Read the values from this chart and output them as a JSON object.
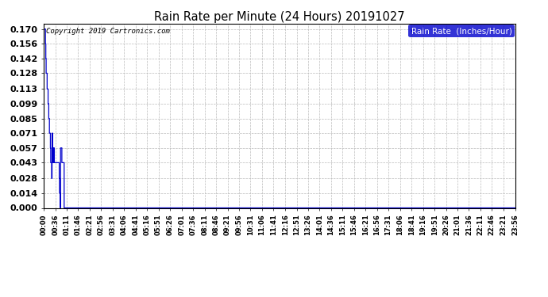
{
  "title": "Rain Rate per Minute (24 Hours) 20191027",
  "copyright_text": "Copyright 2019 Cartronics.com",
  "legend_label": "Rain Rate  (Inches/Hour)",
  "line_color": "#0000cc",
  "legend_bg": "#0000cc",
  "legend_text_color": "#ffffff",
  "background_color": "#ffffff",
  "grid_color": "#bbbbbb",
  "yticks": [
    0.0,
    0.014,
    0.028,
    0.043,
    0.057,
    0.071,
    0.085,
    0.099,
    0.113,
    0.128,
    0.142,
    0.156,
    0.17
  ],
  "ylim": [
    0.0,
    0.175
  ],
  "total_minutes": 1440,
  "rain_data": [
    [
      0,
      0.17
    ],
    [
      1,
      0.17
    ],
    [
      2,
      0.17
    ],
    [
      3,
      0.17
    ],
    [
      4,
      0.17
    ],
    [
      5,
      0.156
    ],
    [
      6,
      0.142
    ],
    [
      7,
      0.128
    ],
    [
      8,
      0.128
    ],
    [
      9,
      0.128
    ],
    [
      10,
      0.113
    ],
    [
      11,
      0.113
    ],
    [
      12,
      0.113
    ],
    [
      13,
      0.099
    ],
    [
      14,
      0.099
    ],
    [
      15,
      0.085
    ],
    [
      16,
      0.085
    ],
    [
      17,
      0.071
    ],
    [
      18,
      0.071
    ],
    [
      19,
      0.071
    ],
    [
      20,
      0.057
    ],
    [
      21,
      0.043
    ],
    [
      22,
      0.043
    ],
    [
      23,
      0.043
    ],
    [
      24,
      0.028
    ],
    [
      25,
      0.071
    ],
    [
      26,
      0.071
    ],
    [
      27,
      0.057
    ],
    [
      28,
      0.043
    ],
    [
      29,
      0.043
    ],
    [
      30,
      0.057
    ],
    [
      31,
      0.057
    ],
    [
      32,
      0.043
    ],
    [
      33,
      0.043
    ],
    [
      34,
      0.043
    ],
    [
      35,
      0.043
    ],
    [
      36,
      0.043
    ],
    [
      37,
      0.043
    ],
    [
      38,
      0.043
    ],
    [
      39,
      0.043
    ],
    [
      40,
      0.043
    ],
    [
      41,
      0.043
    ],
    [
      42,
      0.043
    ],
    [
      43,
      0.043
    ],
    [
      44,
      0.043
    ],
    [
      45,
      0.043
    ],
    [
      46,
      0.043
    ],
    [
      47,
      0.028
    ],
    [
      48,
      0.014
    ],
    [
      49,
      0.014
    ],
    [
      50,
      0.0
    ],
    [
      51,
      0.057
    ],
    [
      52,
      0.057
    ],
    [
      53,
      0.057
    ],
    [
      54,
      0.057
    ],
    [
      55,
      0.043
    ],
    [
      56,
      0.043
    ],
    [
      57,
      0.043
    ],
    [
      58,
      0.043
    ],
    [
      59,
      0.043
    ],
    [
      60,
      0.043
    ],
    [
      61,
      0.043
    ],
    [
      62,
      0.0
    ]
  ],
  "xtick_labels": [
    "00:00",
    "00:36",
    "01:11",
    "01:46",
    "02:21",
    "02:56",
    "03:31",
    "04:06",
    "04:41",
    "05:16",
    "05:51",
    "06:26",
    "07:01",
    "07:36",
    "08:11",
    "08:46",
    "09:21",
    "09:56",
    "10:31",
    "11:06",
    "11:41",
    "12:16",
    "12:51",
    "13:26",
    "14:01",
    "14:36",
    "15:11",
    "15:46",
    "16:21",
    "16:56",
    "17:31",
    "18:06",
    "18:41",
    "19:16",
    "19:51",
    "20:26",
    "21:01",
    "21:36",
    "22:11",
    "22:46",
    "23:21",
    "23:56"
  ]
}
